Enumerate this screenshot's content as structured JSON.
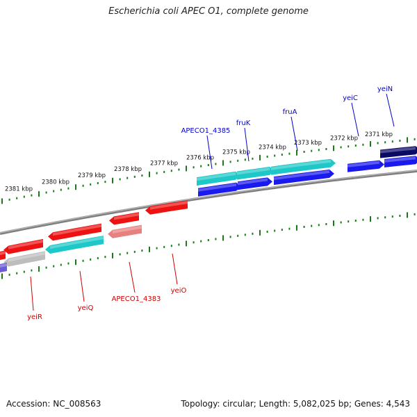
{
  "title": "Escherichia coli APEC O1, complete genome",
  "footer": {
    "accession": "Accession: NC_008563",
    "summary": "Topology: circular; Length: 5,082,025 bp; Genes: 4,543"
  },
  "colors": {
    "forward_cds": "#1a1aee",
    "reverse_cds": "#ee1111",
    "rna_or_selected": "#1ec8c8",
    "pseudo": "#bdbdbd",
    "dark_feature": "#0a0a66",
    "pink_feature": "#e88080",
    "purple_feature": "#6b5bd6",
    "backbone": "#7f7f7f",
    "ticks": "#1a7a1a",
    "forward_label": "#0000cc",
    "reverse_label": "#cc0000"
  },
  "scale_labels": [
    "2381 kbp",
    "2380 kbp",
    "2379 kbp",
    "2378 kbp",
    "2377 kbp",
    "2376 kbp",
    "2375 kbp",
    "2374 kbp",
    "2373 kbp",
    "2372 kbp",
    "2371 kbp"
  ],
  "forward_genes": [
    {
      "label": "APECO1_4385"
    },
    {
      "label": "fruK"
    },
    {
      "label": "fruA"
    },
    {
      "label": "yeiC"
    },
    {
      "label": "yeiN"
    }
  ],
  "reverse_genes": [
    {
      "label": "yeiR"
    },
    {
      "label": "yeiQ"
    },
    {
      "label": "APECO1_4383"
    },
    {
      "label": "yeiO"
    }
  ]
}
